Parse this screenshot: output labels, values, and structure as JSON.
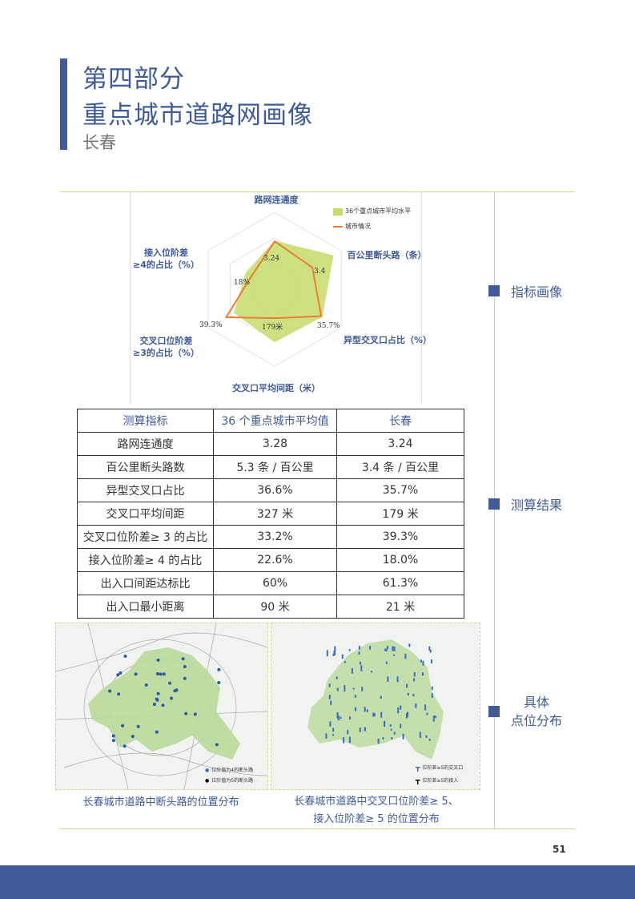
{
  "header": {
    "part": "第四部分",
    "title": "重点城市道路网画像",
    "city": "长春"
  },
  "side_labels": {
    "profile": "指标画像",
    "results": "测算结果",
    "distribution_1": "具体",
    "distribution_2": "点位分布"
  },
  "chart_data": {
    "type": "radar",
    "axes": [
      "路网连通度",
      "百公里断头路（条）",
      "异型交叉口占比（%）",
      "交叉口平均间距（米）",
      "交叉口位阶差≥3的占比（%）",
      "接入位阶差≥4的占比（%）"
    ],
    "axis_label_lines": [
      [
        "路网连通度"
      ],
      [
        "百公里断头路（条）"
      ],
      [
        "异型交叉口占比（%）"
      ],
      [
        "交叉口平均间距（米）"
      ],
      [
        "交叉口位阶差",
        "≥3的占比（%）"
      ],
      [
        "接入位阶差",
        "≥4的占比（%）"
      ]
    ],
    "series": [
      {
        "name": "36个重点城市平均水平",
        "values": [
          3.28,
          5.3,
          36.6,
          327,
          33.2,
          22.6
        ],
        "color": "#c5dc6a",
        "style": "area"
      },
      {
        "name": "城市情况",
        "values": [
          3.24,
          3.4,
          35.7,
          179,
          39.3,
          18.0
        ],
        "color": "#ed7d31",
        "style": "line"
      }
    ],
    "data_labels": [
      "3.24",
      "3.4",
      "35.7%",
      "179米",
      "39.3%",
      "18%"
    ],
    "legend": "top-right"
  },
  "table": {
    "headers": [
      "测算指标",
      "36 个重点城市平均值",
      "长春"
    ],
    "rows": [
      [
        "路网连通度",
        "3.28",
        "3.24"
      ],
      [
        "百公里断头路数",
        "5.3 条 / 百公里",
        "3.4 条 / 百公里"
      ],
      [
        "异型交叉口占比",
        "36.6%",
        "35.7%"
      ],
      [
        "交叉口平均间距",
        "327 米",
        "179 米"
      ],
      [
        "交叉口位阶差≥ 3 的占比",
        "33.2%",
        "39.3%"
      ],
      [
        "接入位阶差≥ 4 的占比",
        "22.6%",
        "18.0%"
      ],
      [
        "出入口间距达标比",
        "60%",
        "61.3%"
      ],
      [
        "出入口最小距离",
        "90 米",
        "21 米"
      ]
    ]
  },
  "maps": {
    "left": {
      "legend": [
        "位阶值为4的断头路",
        "位阶值为5的断头路"
      ],
      "caption": "长春城市道路中断头路的位置分布"
    },
    "right": {
      "legend": [
        "位阶差≥5的交叉口",
        "位阶差≥5的接入"
      ],
      "caption_1": "长春城市道路中交叉口位阶差≥ 5、",
      "caption_2": "接入位阶差≥ 5 的位置分布"
    }
  },
  "page_number": "51"
}
